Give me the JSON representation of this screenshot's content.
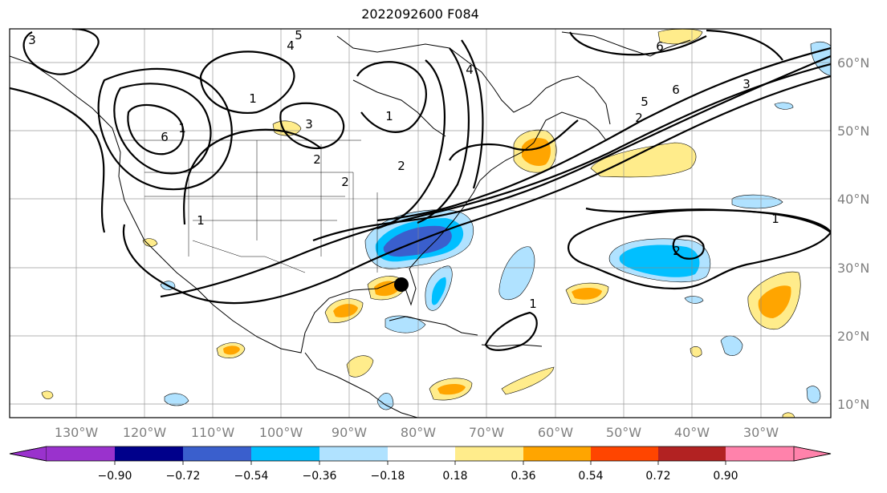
{
  "title": "2022092600 F084",
  "map": {
    "lon_labels": [
      "130°W",
      "120°W",
      "110°W",
      "100°W",
      "90°W",
      "80°W",
      "70°W",
      "60°W",
      "50°W",
      "40°W",
      "30°W"
    ],
    "lat_labels": [
      "60°N",
      "50°N",
      "40°N",
      "30°N",
      "20°N",
      "10°N"
    ],
    "contour_labels": [
      "5",
      "4",
      "3",
      "6",
      "1",
      "2",
      "1",
      "4",
      "2",
      "3",
      "1",
      "2",
      "1",
      "6",
      "5",
      "6",
      "3",
      "2",
      "1",
      "2",
      "1"
    ],
    "marker": "storm-center-dot"
  },
  "colorbar": {
    "ticks": [
      "−0.90",
      "−0.72",
      "−0.54",
      "−0.36",
      "−0.18",
      "0.18",
      "0.36",
      "0.54",
      "0.72",
      "0.90"
    ],
    "colors": [
      "#9a32cd",
      "#00008b",
      "#3a5fcd",
      "#00bfff",
      "#b0e2ff",
      "#ffffff",
      "#ffec8b",
      "#ffa500",
      "#ff4500",
      "#b22222",
      "#ff82ab"
    ]
  }
}
